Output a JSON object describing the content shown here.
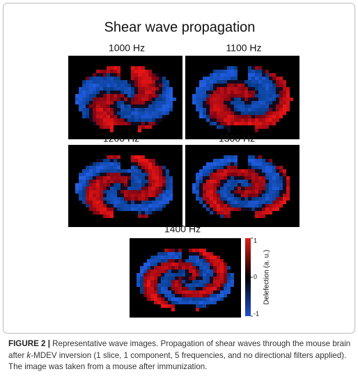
{
  "figure": {
    "title": "Shear wave propagation",
    "panels": [
      {
        "label": "1000 Hz"
      },
      {
        "label": "1100 Hz"
      },
      {
        "label": "1200 Hz"
      },
      {
        "label": "1300 Hz"
      },
      {
        "label": "1400 Hz"
      }
    ],
    "colorbar": {
      "label": "Delefection (a. u.)",
      "ticks": [
        1,
        0,
        -1
      ]
    }
  },
  "caption": {
    "label": "FIGURE 2 |",
    "text_before": "Representative wave images. Propagation of shear waves through the mouse brain after ",
    "italic": "k",
    "text_after": "-MDEV inversion (1 slice, 1 component, 5 frequencies, and no directional filters applied). The image was taken from a mouse after immunization."
  }
}
